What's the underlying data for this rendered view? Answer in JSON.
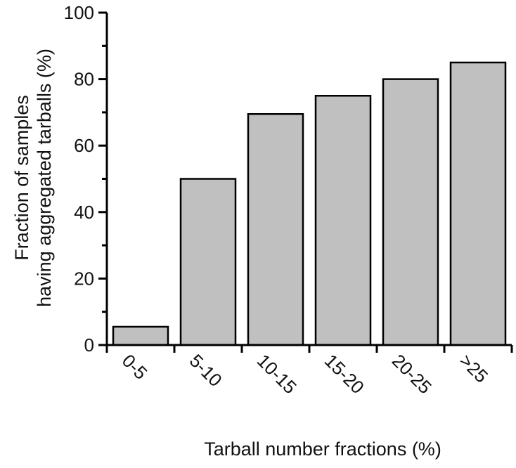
{
  "chart_data": {
    "type": "bar",
    "categories": [
      "0-5",
      "5-10",
      "10-15",
      "15-20",
      "20-25",
      ">25"
    ],
    "values": [
      5.5,
      50,
      69.5,
      75,
      80,
      85
    ],
    "xlabel": "Tarball number fractions (%)",
    "ylabel_line1": "Fraction of samples",
    "ylabel_line2": "having aggregated tarballs (%)",
    "ylim": [
      0,
      100
    ],
    "yticks": [
      "0",
      "20",
      "40",
      "60",
      "80",
      "100"
    ],
    "bar_color": "#c0c0c0",
    "bar_edge_color": "#000000",
    "grid": false
  }
}
